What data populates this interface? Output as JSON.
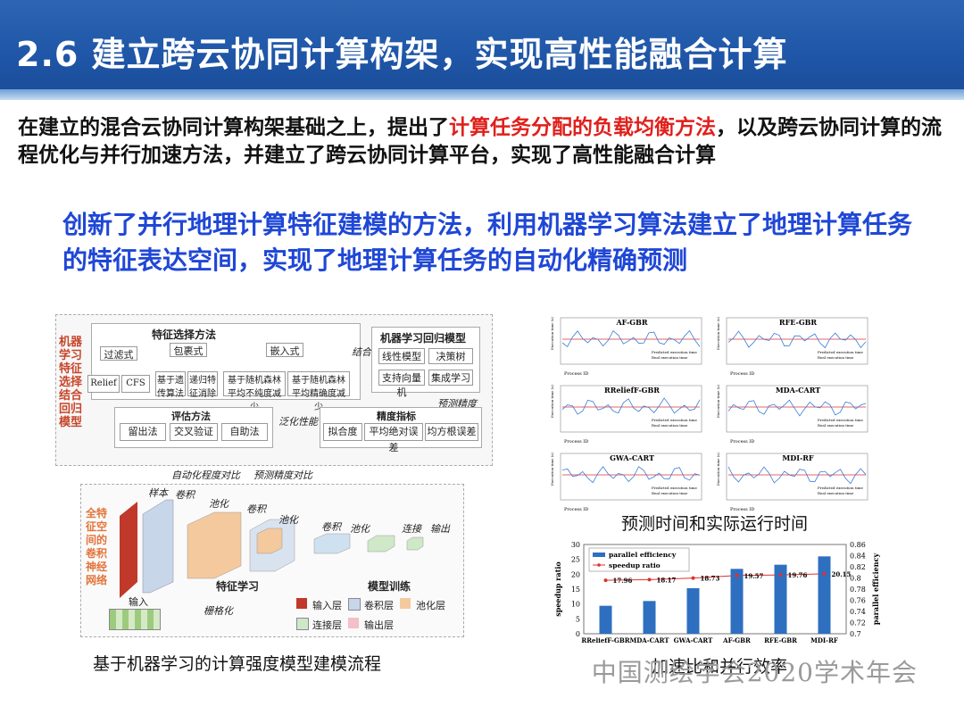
{
  "header": {
    "title": "2.6  建立跨云协同计算构架，实现高性能融合计算"
  },
  "intro": {
    "part1": "在建立的混合云协同计算构架基础之上，提出了",
    "highlight": "计算任务分配的负载均衡方法",
    "part2": "，以及跨云协同计算的流程优化与并行加速方法，并建立了跨云协同计算平台，实现了高性能融合计算"
  },
  "innovation": "创新了并行地理计算特征建模的方法，利用机器学习算法建立了地理计算任务的特征表达空间，实现了地理计算任务的自动化精确预测",
  "flowchart": {
    "side_label": "机器学习特征选择结合回归模型",
    "feature_title": "特征选择方法",
    "filter": "过滤式",
    "wrapper": "包裹式",
    "embedded": "嵌入式",
    "relief": "Relief",
    "cfs": "CFS",
    "genetic": "基于遗传算法",
    "recursive": "递归特征消除",
    "rf_impurity": "基于随机森林平均不纯度减少",
    "rf_accuracy": "基于随机森林平均精确度减少",
    "combine": "结合",
    "ml_title": "机器学习回归模型",
    "linear": "线性模型",
    "tree": "决策树",
    "svm": "支持向量机",
    "ensemble": "集成学习",
    "predict_acc": "预测精度",
    "eval_title": "评估方法",
    "holdout": "留出法",
    "cv": "交叉验证",
    "bootstrap": "自助法",
    "generalize": "泛化性能",
    "metric_title": "精度指标",
    "fit": "拟合度",
    "mae": "平均绝对误差",
    "rmse": "均方根误差",
    "compare": "自动化程度对比",
    "compare2": "预测精度对比",
    "cnn_label": "全特征空间的卷积神经网络",
    "sample": "样本",
    "conv": "卷积",
    "pool": "池化",
    "fc": "连接",
    "out": "输出",
    "input": "输入",
    "grid": "栅格化",
    "feat_learn": "特征学习",
    "model_train": "模型训练",
    "legend_input": "输入层",
    "legend_conv": "卷积层",
    "legend_pool": "池化层",
    "legend_fc": "连接层",
    "legend_out": "输出层"
  },
  "caption_left": "基于机器学习的计算强度模型建模流程",
  "caption_right_top": "预测时间和实际运行时间",
  "caption_right_bottom": "加速比和并行效率",
  "mini_charts": [
    {
      "title": "AF-GBR"
    },
    {
      "title": "RFE-GBR"
    },
    {
      "title": "RReliefF-GBR"
    },
    {
      "title": "MDA-CART"
    },
    {
      "title": "GWA-CART"
    },
    {
      "title": "MDI-RF"
    }
  ],
  "mini_legend": {
    "pred": "Predicted execution time",
    "real": "Real execution time"
  },
  "mini_axis": {
    "x": "Process ID",
    "y": "Execution time (s)"
  },
  "chart_data": {
    "type": "bar",
    "categories": [
      "RReliefF-GBR",
      "MDA-CART",
      "GWA-CART",
      "AF-GBR",
      "RFE-GBR",
      "MDI-RF"
    ],
    "series": [
      {
        "name": "parallel efficiency",
        "values": [
          9.4,
          11.0,
          15.3,
          21.8,
          23.2,
          26.0
        ],
        "color": "#2e6fc0"
      },
      {
        "name": "speedup ratio",
        "values": [
          17.96,
          18.17,
          18.73,
          19.57,
          19.76,
          20.15
        ],
        "color": "#e03030"
      }
    ],
    "data_labels": [
      "17.96",
      "18.17",
      "18.73",
      "19.57",
      "19.76",
      "20.15"
    ],
    "ylabel": "speedup ratio",
    "y2label": "parallel efficiency",
    "ylim": [
      0,
      30
    ],
    "yticks": [
      "0",
      "5",
      "10",
      "15",
      "20",
      "25",
      "30"
    ],
    "y2ticks": [
      "0.7",
      "0.72",
      "0.74",
      "0.76",
      "0.78",
      "0.8",
      "0.82",
      "0.84",
      "0.86"
    ],
    "legend_position": "top-left"
  },
  "watermark": "中国测绘学会2020学术年会"
}
